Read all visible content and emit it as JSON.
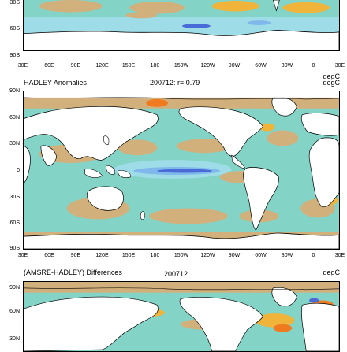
{
  "colors": {
    "ocean_base": "#83d3c6",
    "warm_light": "#d2b07c",
    "warm": "#f0b43a",
    "warm_strong": "#f07a1f",
    "cool_light": "#9edce8",
    "cool": "#7fb8ea",
    "cool_strong": "#4a6ad8",
    "land": "#ffffff"
  },
  "lon_ticks": [
    "30E",
    "60E",
    "90E",
    "120E",
    "150E",
    "180",
    "150W",
    "120W",
    "90W",
    "60W",
    "30W",
    "0",
    "30E"
  ],
  "panel_top": {
    "lat_labels": [
      "30S",
      "60S",
      "90S"
    ],
    "lon_ticks_ref": "lon_ticks",
    "units": "degC"
  },
  "panel_mid": {
    "title": "HADLEY Anomalies",
    "subtitle": "200712: r= 0.79",
    "units": "degC",
    "lat_labels": [
      "90N",
      "60N",
      "30N",
      "0",
      "30S",
      "60S",
      "90S"
    ]
  },
  "panel_bottom": {
    "title": "(AMSRE-HADLEY) Differences",
    "subtitle": "200712",
    "units": "degC",
    "lat_labels": [
      "90N",
      "60N",
      "30N"
    ]
  }
}
